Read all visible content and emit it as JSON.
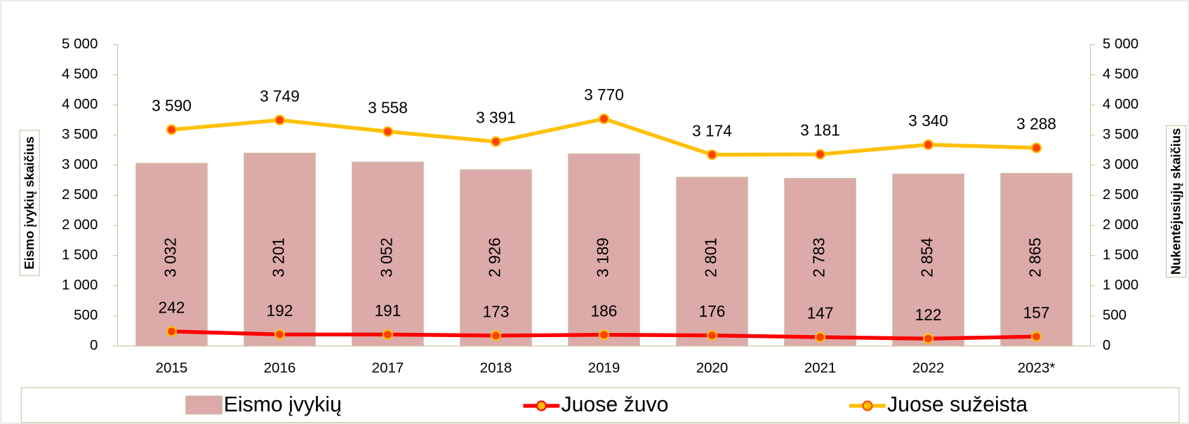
{
  "chart_data": {
    "type": "bar",
    "categories": [
      "2015",
      "2016",
      "2017",
      "2018",
      "2019",
      "2020",
      "2021",
      "2022",
      "2023*"
    ],
    "y_label": "Eismo įvykių skaičius",
    "y2_label": "Nukentėjusiųjų skaičius",
    "ylim": [
      0,
      5000
    ],
    "yticks": [
      0,
      500,
      {
        "value": 1000,
        "label": "1 000"
      },
      {
        "value": 1500,
        "label": "1 500"
      },
      {
        "value": 2000,
        "label": "2 000"
      },
      {
        "value": 2500,
        "label": "2 500"
      },
      {
        "value": 3000,
        "label": "3 000"
      },
      {
        "value": 3500,
        "label": "3 500"
      },
      {
        "value": 4000,
        "label": "4 000"
      },
      {
        "value": 4500,
        "label": "4 500"
      },
      {
        "value": 5000,
        "label": "5 000"
      }
    ],
    "y2lim": [
      0,
      5000
    ],
    "y2ticks": [
      0,
      500,
      {
        "value": 1000,
        "label": "1 000"
      },
      {
        "value": 1500,
        "label": "1 500"
      },
      {
        "value": 2000,
        "label": "2 000"
      },
      {
        "value": 2500,
        "label": "2 500"
      },
      {
        "value": 3000,
        "label": "3 000"
      },
      {
        "value": 3500,
        "label": "3 500"
      },
      {
        "value": 4000,
        "label": "4 000"
      },
      {
        "value": 4500,
        "label": "4 500"
      },
      {
        "value": 5000,
        "label": "5 000"
      }
    ],
    "legend": "bottom",
    "series": [
      {
        "name": "Eismo įvykių",
        "type": "bar",
        "color": "#dcaaa9",
        "values": [
          3032,
          3201,
          3052,
          2926,
          3189,
          2801,
          2783,
          2854,
          2865
        ],
        "value_labels": [
          "3 032",
          "3 201",
          "3 052",
          "2 926",
          "3 189",
          "2 801",
          "2 783",
          "2 854",
          "2 865"
        ]
      },
      {
        "name": "Juose žuvo",
        "type": "line",
        "axis": "y2",
        "color": "#ff0000",
        "values": [
          242,
          192,
          191,
          173,
          186,
          176,
          147,
          122,
          157
        ]
      },
      {
        "name": "Juose sužeista",
        "type": "line",
        "axis": "y2",
        "color": "#ffc000",
        "values": [
          3590,
          3749,
          3558,
          3391,
          3770,
          3174,
          3181,
          3340,
          3288
        ],
        "value_labels": [
          "3 590",
          "3 749",
          "3 558",
          "3 391",
          "3 770",
          "3 174",
          "3 181",
          "3 340",
          "3 288"
        ]
      }
    ]
  }
}
